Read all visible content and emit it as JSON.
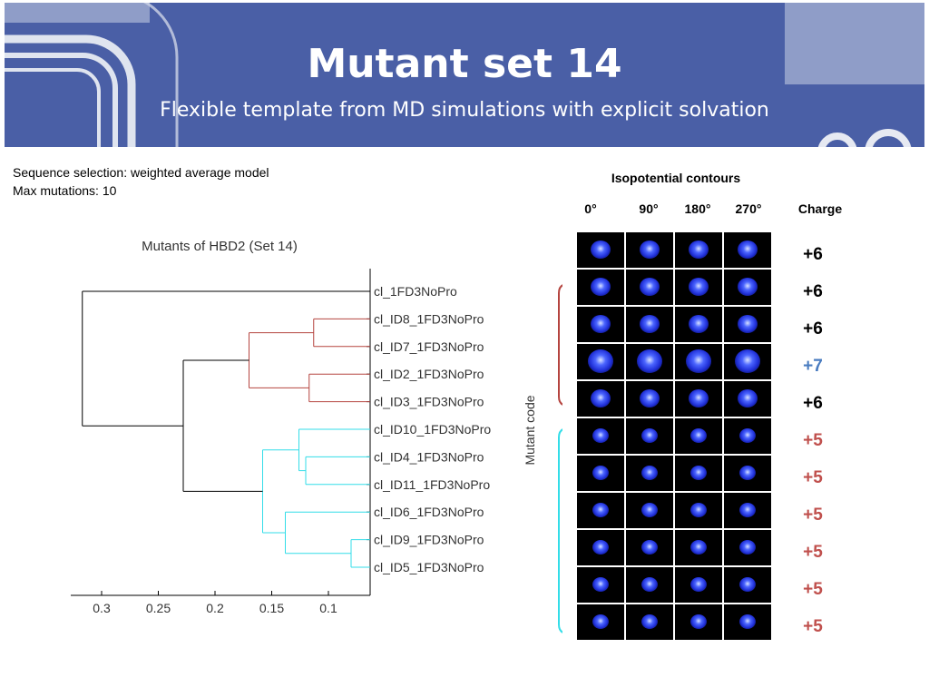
{
  "slide": {
    "title": "Mutant set 14",
    "subtitle": "Flexible template from MD simulations with explicit solvation",
    "info_lines": [
      "Sequence selection: weighted average model",
      "Max mutations: 10"
    ]
  },
  "colors": {
    "banner": "#4a5fa6",
    "red_cluster": "#b5443f",
    "cyan_cluster": "#33dde8",
    "charge_plus7": "#4a7cc0",
    "charge_plus5": "#c0504d"
  },
  "chart_data": {
    "type": "dendrogram",
    "title": "Mutants of HBD2 (Set 14)",
    "ylabel": "Mutant code",
    "x_ticks": [
      "0.3",
      "0.25",
      "0.2",
      "0.15",
      "0.1"
    ],
    "leaves": [
      "cl_1FD3NoPro",
      "cl_ID8_1FD3NoPro",
      "cl_ID7_1FD3NoPro",
      "cl_ID2_1FD3NoPro",
      "cl_ID3_1FD3NoPro",
      "cl_ID10_1FD3NoPro",
      "cl_ID4_1FD3NoPro",
      "cl_ID11_1FD3NoPro",
      "cl_ID6_1FD3NoPro",
      "cl_ID9_1FD3NoPro",
      "cl_ID5_1FD3NoPro"
    ],
    "merges": [
      {
        "a": [
          1
        ],
        "b": [
          2
        ],
        "height": 0.113,
        "color": "red"
      },
      {
        "a": [
          3
        ],
        "b": [
          4
        ],
        "height": 0.117,
        "color": "red"
      },
      {
        "a": [
          1,
          2
        ],
        "b": [
          3,
          4
        ],
        "height": 0.17,
        "color": "red"
      },
      {
        "a": [
          9
        ],
        "b": [
          10
        ],
        "height": 0.08,
        "color": "cyan"
      },
      {
        "a": [
          6
        ],
        "b": [
          7
        ],
        "height": 0.12,
        "color": "cyan"
      },
      {
        "a": [
          5
        ],
        "b": [
          6,
          7
        ],
        "height": 0.126,
        "color": "cyan"
      },
      {
        "a": [
          8
        ],
        "b": [
          9,
          10
        ],
        "height": 0.138,
        "color": "cyan"
      },
      {
        "a": [
          5,
          6,
          7
        ],
        "b": [
          8,
          9,
          10
        ],
        "height": 0.158,
        "color": "cyan"
      },
      {
        "a": [
          1,
          2,
          3,
          4
        ],
        "b": [
          5,
          6,
          7,
          8,
          9,
          10
        ],
        "height": 0.228,
        "color": "black"
      },
      {
        "a": [
          0
        ],
        "b": [
          1,
          2,
          3,
          4,
          5,
          6,
          7,
          8,
          9,
          10
        ],
        "height": 0.317,
        "color": "black"
      }
    ]
  },
  "contours": {
    "title": "Isopotential contours",
    "angles": [
      "0°",
      "90°",
      "180°",
      "270°"
    ],
    "charge_header": "Charge",
    "rows": [
      {
        "charge": "+6",
        "charge_color": "#000000",
        "size": "medium"
      },
      {
        "charge": "+6",
        "charge_color": "#000000",
        "size": "medium"
      },
      {
        "charge": "+6",
        "charge_color": "#000000",
        "size": "medium"
      },
      {
        "charge": "+7",
        "charge_color": "#4a7cc0",
        "size": "large"
      },
      {
        "charge": "+6",
        "charge_color": "#000000",
        "size": "medium"
      },
      {
        "charge": "+5",
        "charge_color": "#c0504d",
        "size": "small"
      },
      {
        "charge": "+5",
        "charge_color": "#c0504d",
        "size": "small"
      },
      {
        "charge": "+5",
        "charge_color": "#c0504d",
        "size": "small"
      },
      {
        "charge": "+5",
        "charge_color": "#c0504d",
        "size": "small"
      },
      {
        "charge": "+5",
        "charge_color": "#c0504d",
        "size": "small"
      },
      {
        "charge": "+5",
        "charge_color": "#c0504d",
        "size": "small"
      }
    ]
  }
}
